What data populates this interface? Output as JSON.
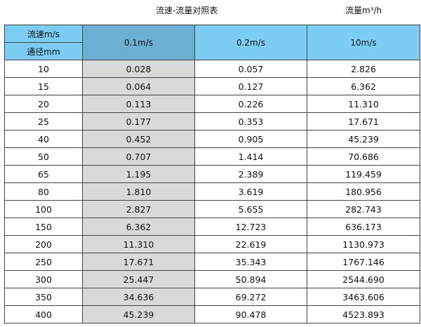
{
  "title": "流速-流量对照表",
  "unit": "流量m³/h",
  "header": {
    "velocity_label": "流速m/s",
    "diameter_label": "通径mm",
    "columns": [
      "0.1m/s",
      "0.2m/s",
      "10m/s"
    ]
  },
  "rows": [
    [
      "10",
      "0.028",
      "0.057",
      "2.826"
    ],
    [
      "15",
      "0.064",
      "0.127",
      "6.362"
    ],
    [
      "20",
      "0.113",
      "0.226",
      "11.310"
    ],
    [
      "25",
      "0.177",
      "0.353",
      "17.671"
    ],
    [
      "40",
      "0.452",
      "0.905",
      "45.239"
    ],
    [
      "50",
      "0.707",
      "1.414",
      "70.686"
    ],
    [
      "65",
      "1.195",
      "2.389",
      "119.459"
    ],
    [
      "80",
      "1.810",
      "3.619",
      "180.956"
    ],
    [
      "100",
      "2.827",
      "5.655",
      "282.743"
    ],
    [
      "150",
      "6.362",
      "12.723",
      "636.173"
    ],
    [
      "200",
      "11.310",
      "22.619",
      "1130.973"
    ],
    [
      "250",
      "17.671",
      "35.343",
      "1767.146"
    ],
    [
      "300",
      "25.447",
      "50.894",
      "2544.690"
    ],
    [
      "350",
      "34.636",
      "69.272",
      "3463.606"
    ],
    [
      "400",
      "45.239",
      "90.478",
      "4523.893"
    ]
  ],
  "colors": {
    "header": "#7ccdf4",
    "header_highlight": "#6bb0d3",
    "column_highlight": "#d9d9d9"
  }
}
